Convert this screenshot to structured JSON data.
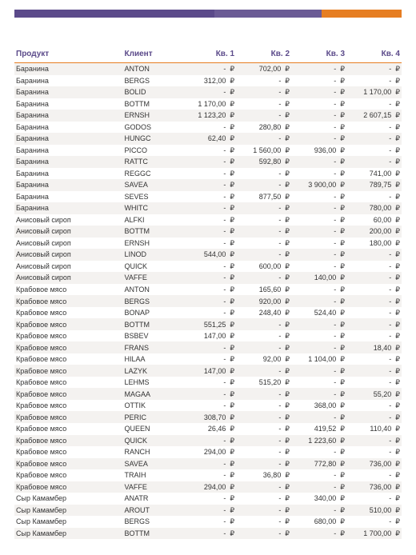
{
  "theme": {
    "accent_purple1": "#5b4a8a",
    "accent_purple2": "#6b5b95",
    "accent_orange": "#e67e22",
    "row_alt_bg": "#f4f2f0",
    "text_color": "#333333",
    "header_text_color": "#5b4a8a"
  },
  "table": {
    "headers": {
      "product": "Продукт",
      "client": "Клиент",
      "q1": "Кв. 1",
      "q2": "Кв. 2",
      "q3": "Кв. 3",
      "q4": "Кв. 4"
    },
    "currency": "₽",
    "empty": "-",
    "rows": [
      {
        "product": "Баранина",
        "client": "ANTON",
        "q1": null,
        "q2": "702,00",
        "q3": null,
        "q4": null
      },
      {
        "product": "Баранина",
        "client": "BERGS",
        "q1": "312,00",
        "q2": null,
        "q3": null,
        "q4": null
      },
      {
        "product": "Баранина",
        "client": "BOLID",
        "q1": null,
        "q2": null,
        "q3": null,
        "q4": "1 170,00"
      },
      {
        "product": "Баранина",
        "client": "BOTTM",
        "q1": "1 170,00",
        "q2": null,
        "q3": null,
        "q4": null
      },
      {
        "product": "Баранина",
        "client": "ERNSH",
        "q1": "1 123,20",
        "q2": null,
        "q3": null,
        "q4": "2 607,15"
      },
      {
        "product": "Баранина",
        "client": "GODOS",
        "q1": null,
        "q2": "280,80",
        "q3": null,
        "q4": null
      },
      {
        "product": "Баранина",
        "client": "HUNGC",
        "q1": "62,40",
        "q2": null,
        "q3": null,
        "q4": null
      },
      {
        "product": "Баранина",
        "client": "PICCO",
        "q1": null,
        "q2": "1 560,00",
        "q3": "936,00",
        "q4": null
      },
      {
        "product": "Баранина",
        "client": "RATTC",
        "q1": null,
        "q2": "592,80",
        "q3": null,
        "q4": null
      },
      {
        "product": "Баранина",
        "client": "REGGC",
        "q1": null,
        "q2": null,
        "q3": null,
        "q4": "741,00"
      },
      {
        "product": "Баранина",
        "client": "SAVEA",
        "q1": null,
        "q2": null,
        "q3": "3 900,00",
        "q4": "789,75"
      },
      {
        "product": "Баранина",
        "client": "SEVES",
        "q1": null,
        "q2": "877,50",
        "q3": null,
        "q4": null
      },
      {
        "product": "Баранина",
        "client": "WHITC",
        "q1": null,
        "q2": null,
        "q3": null,
        "q4": "780,00"
      },
      {
        "product": "Анисовый сироп",
        "client": "ALFKI",
        "q1": null,
        "q2": null,
        "q3": null,
        "q4": "60,00"
      },
      {
        "product": "Анисовый сироп",
        "client": "BOTTM",
        "q1": null,
        "q2": null,
        "q3": null,
        "q4": "200,00"
      },
      {
        "product": "Анисовый сироп",
        "client": "ERNSH",
        "q1": null,
        "q2": null,
        "q3": null,
        "q4": "180,00"
      },
      {
        "product": "Анисовый сироп",
        "client": "LINOD",
        "q1": "544,00",
        "q2": null,
        "q3": null,
        "q4": null
      },
      {
        "product": "Анисовый сироп",
        "client": "QUICK",
        "q1": null,
        "q2": "600,00",
        "q3": null,
        "q4": null
      },
      {
        "product": "Анисовый сироп",
        "client": "VAFFE",
        "q1": null,
        "q2": null,
        "q3": "140,00",
        "q4": null
      },
      {
        "product": "Крабовое мясо",
        "client": "ANTON",
        "q1": null,
        "q2": "165,60",
        "q3": null,
        "q4": null
      },
      {
        "product": "Крабовое мясо",
        "client": "BERGS",
        "q1": null,
        "q2": "920,00",
        "q3": null,
        "q4": null
      },
      {
        "product": "Крабовое мясо",
        "client": "BONAP",
        "q1": null,
        "q2": "248,40",
        "q3": "524,40",
        "q4": null
      },
      {
        "product": "Крабовое мясо",
        "client": "BOTTM",
        "q1": "551,25",
        "q2": null,
        "q3": null,
        "q4": null
      },
      {
        "product": "Крабовое мясо",
        "client": "BSBEV",
        "q1": "147,00",
        "q2": null,
        "q3": null,
        "q4": null
      },
      {
        "product": "Крабовое мясо",
        "client": "FRANS",
        "q1": null,
        "q2": null,
        "q3": null,
        "q4": "18,40"
      },
      {
        "product": "Крабовое мясо",
        "client": "HILAA",
        "q1": null,
        "q2": "92,00",
        "q3": "1 104,00",
        "q4": null
      },
      {
        "product": "Крабовое мясо",
        "client": "LAZYK",
        "q1": "147,00",
        "q2": null,
        "q3": null,
        "q4": null
      },
      {
        "product": "Крабовое мясо",
        "client": "LEHMS",
        "q1": null,
        "q2": "515,20",
        "q3": null,
        "q4": null
      },
      {
        "product": "Крабовое мясо",
        "client": "MAGAA",
        "q1": null,
        "q2": null,
        "q3": null,
        "q4": "55,20"
      },
      {
        "product": "Крабовое мясо",
        "client": "OTTIK",
        "q1": null,
        "q2": null,
        "q3": "368,00",
        "q4": null
      },
      {
        "product": "Крабовое мясо",
        "client": "PERIC",
        "q1": "308,70",
        "q2": null,
        "q3": null,
        "q4": null
      },
      {
        "product": "Крабовое мясо",
        "client": "QUEEN",
        "q1": "26,46",
        "q2": null,
        "q3": "419,52",
        "q4": "110,40"
      },
      {
        "product": "Крабовое мясо",
        "client": "QUICK",
        "q1": null,
        "q2": null,
        "q3": "1 223,60",
        "q4": null
      },
      {
        "product": "Крабовое мясо",
        "client": "RANCH",
        "q1": "294,00",
        "q2": null,
        "q3": null,
        "q4": null
      },
      {
        "product": "Крабовое мясо",
        "client": "SAVEA",
        "q1": null,
        "q2": null,
        "q3": "772,80",
        "q4": "736,00"
      },
      {
        "product": "Крабовое мясо",
        "client": "TRAIH",
        "q1": null,
        "q2": "36,80",
        "q3": null,
        "q4": null
      },
      {
        "product": "Крабовое мясо",
        "client": "VAFFE",
        "q1": "294,00",
        "q2": null,
        "q3": null,
        "q4": "736,00"
      },
      {
        "product": "Сыр Камамбер",
        "client": "ANATR",
        "q1": null,
        "q2": null,
        "q3": "340,00",
        "q4": null
      },
      {
        "product": "Сыр Камамбер",
        "client": "AROUT",
        "q1": null,
        "q2": null,
        "q3": null,
        "q4": "510,00"
      },
      {
        "product": "Сыр Камамбер",
        "client": "BERGS",
        "q1": null,
        "q2": null,
        "q3": "680,00",
        "q4": null
      },
      {
        "product": "Сыр Камамбер",
        "client": "BOTTM",
        "q1": null,
        "q2": null,
        "q3": null,
        "q4": "1 700,00"
      }
    ]
  }
}
